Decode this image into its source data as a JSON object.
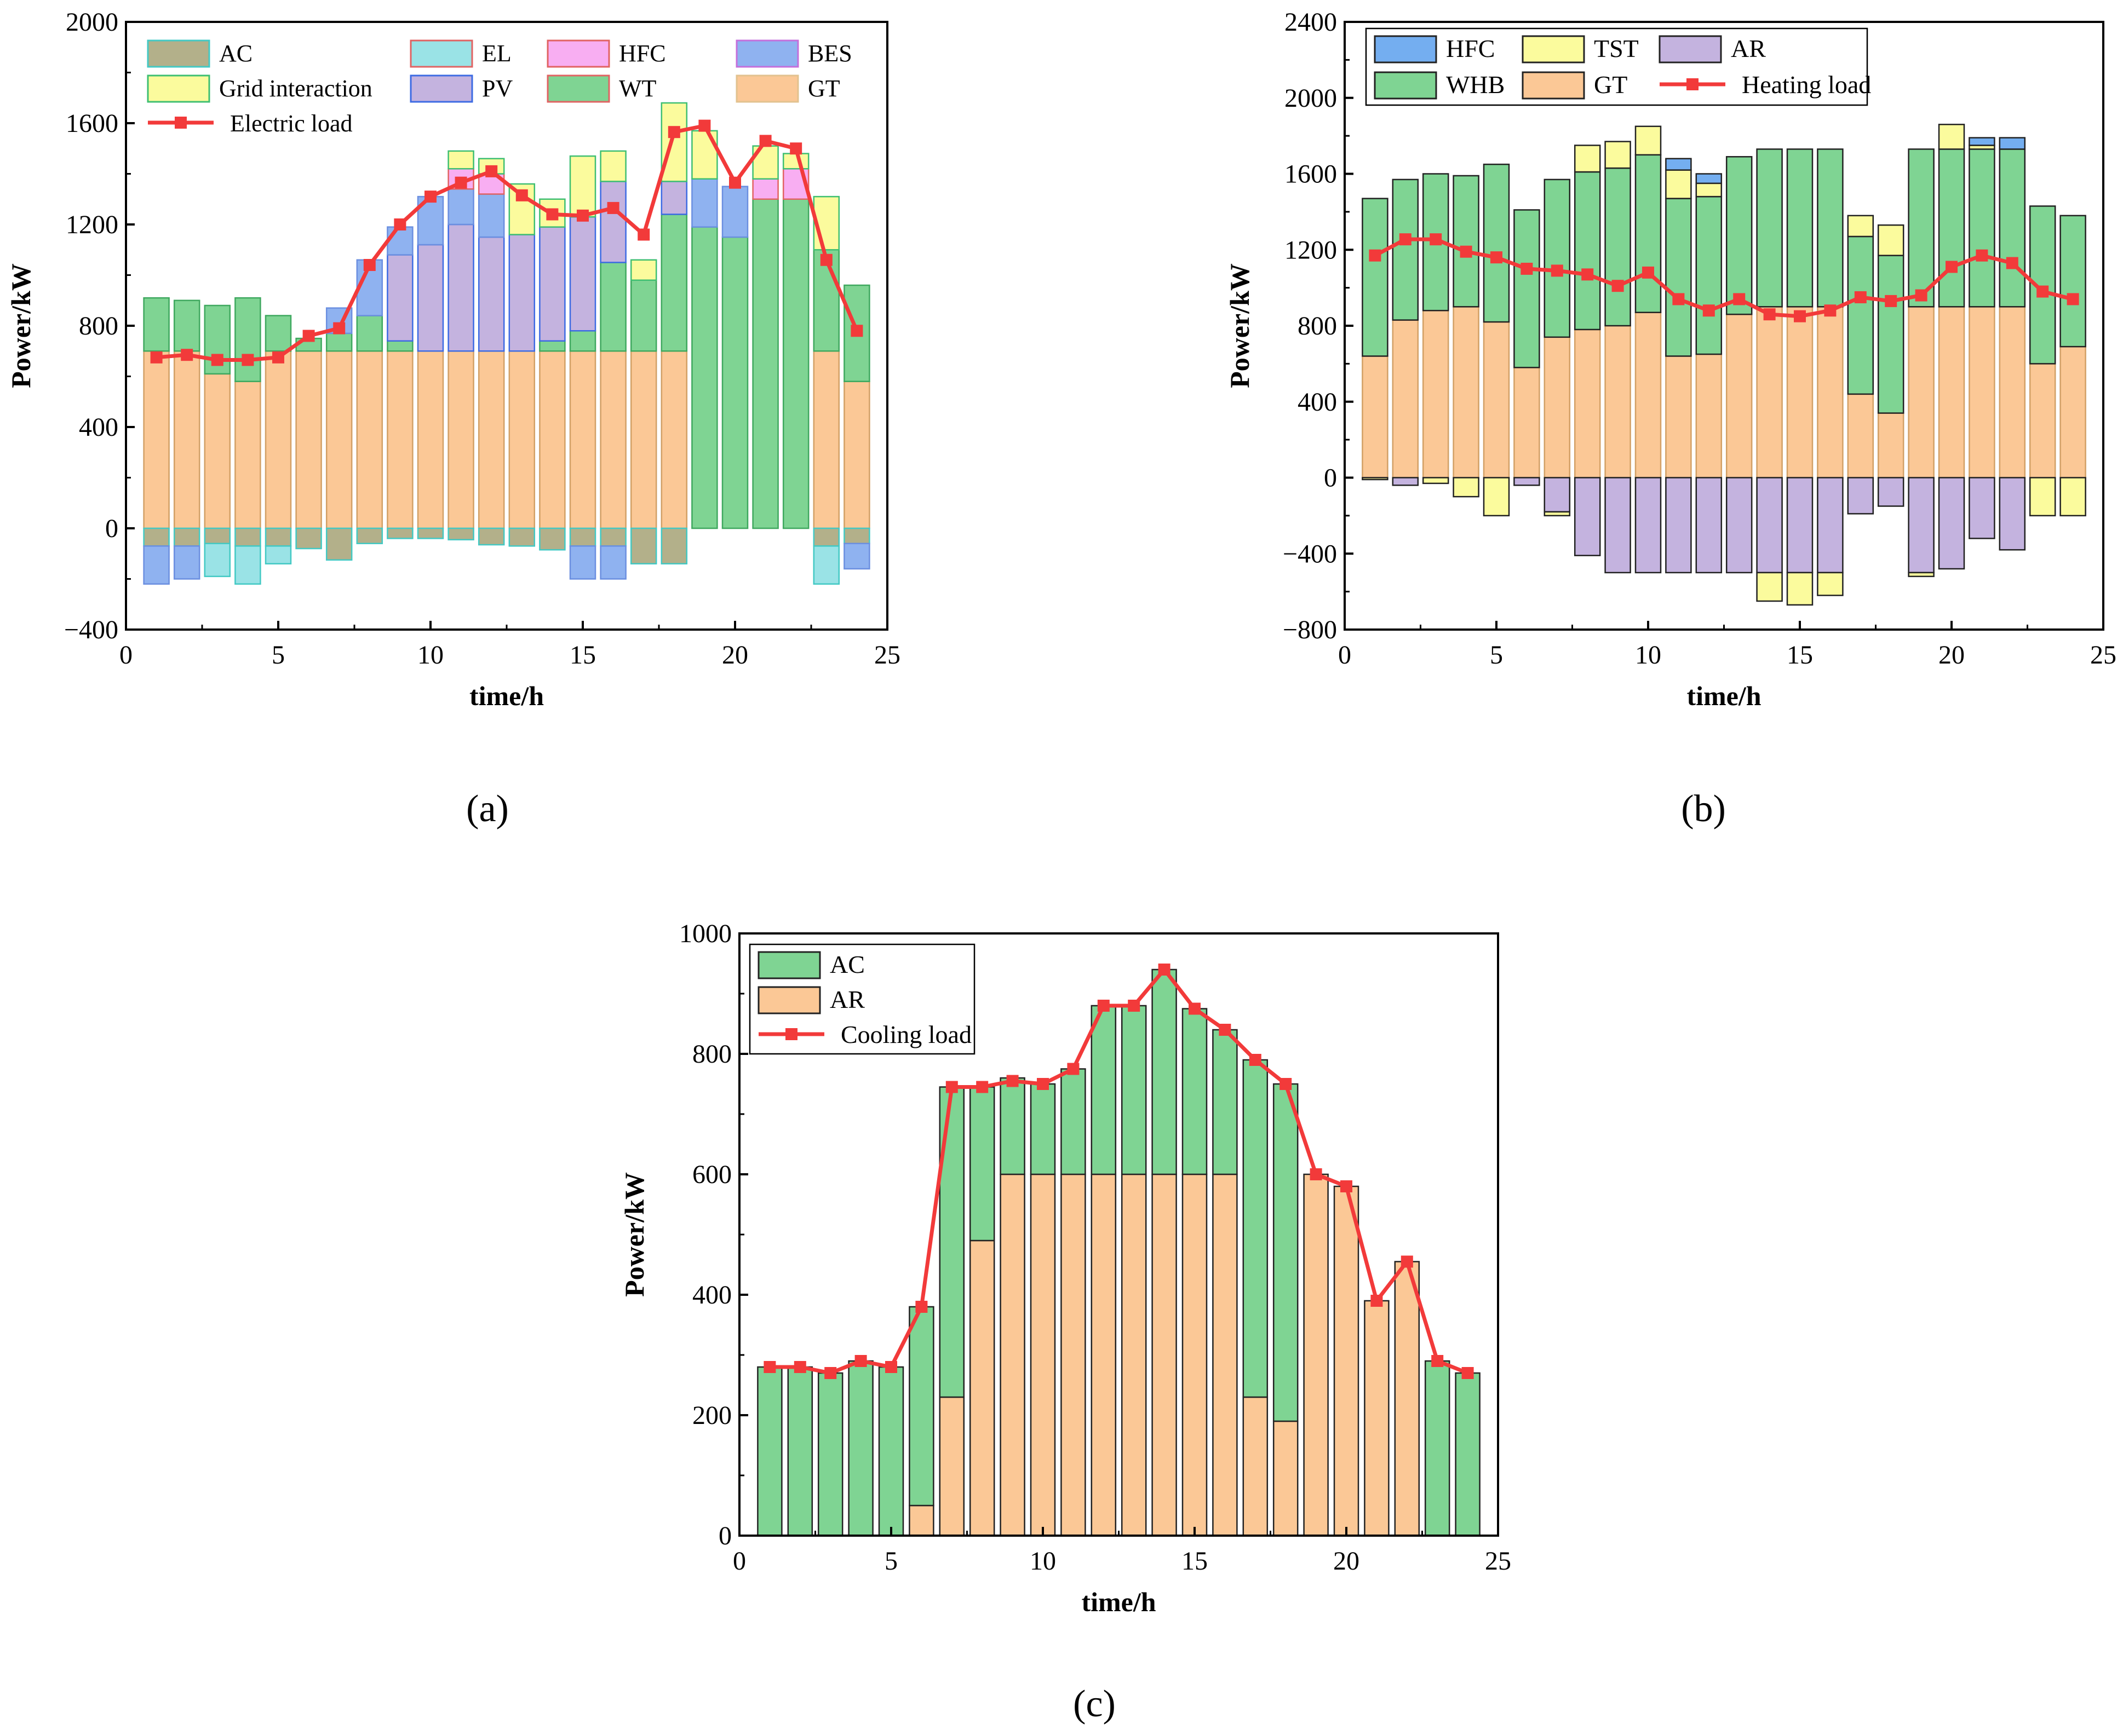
{
  "figure": {
    "panel_labels": [
      "(a)",
      "(b)",
      "(c)"
    ]
  },
  "colors": {
    "AC": "#b3b08a",
    "EL": "#9ae3e6",
    "HFC": "#f8aef2",
    "BES": "#8fb2f0",
    "Grid": "#fbfb9d",
    "PV": "#c4b3df",
    "WT": "#7fd493",
    "GT": "#fbc896",
    "line": "#f23a3a",
    "TST": "#fbfb9d",
    "AR": "#c4b3df",
    "WHB": "#7fd493",
    "HFC_b": "#74aef0",
    "AC_c": "#7fd493",
    "AR_c": "#fbc896"
  },
  "chart_data": [
    {
      "id": "a",
      "type": "bar",
      "stacked": true,
      "title": "(a)",
      "xlabel": "time/h",
      "ylabel": "Power/kW",
      "xlim": [
        0,
        25
      ],
      "ylim": [
        -400,
        2000
      ],
      "xticks": [
        0,
        5,
        10,
        15,
        20,
        25
      ],
      "yticks": [
        -400,
        0,
        400,
        800,
        1200,
        1600,
        2000
      ],
      "ytick_labels": [
        "−400",
        "0",
        "400",
        "800",
        "1200",
        "1600",
        "2000"
      ],
      "x": [
        1,
        2,
        3,
        4,
        5,
        6,
        7,
        8,
        9,
        10,
        11,
        12,
        13,
        14,
        15,
        16,
        17,
        18,
        19,
        20,
        21,
        22,
        23,
        24
      ],
      "positive_order": [
        "GT",
        "WT",
        "PV",
        "BES",
        "HFC",
        "Grid interaction"
      ],
      "negative_order": [
        "AC",
        "EL",
        "BES"
      ],
      "series": [
        {
          "name": "GT",
          "key": "GT",
          "sign": "pos",
          "values": [
            700,
            700,
            610,
            580,
            700,
            700,
            700,
            700,
            700,
            700,
            700,
            700,
            700,
            700,
            700,
            700,
            700,
            700,
            0,
            0,
            0,
            0,
            700,
            580
          ]
        },
        {
          "name": "WT",
          "key": "WT",
          "sign": "pos",
          "values": [
            210,
            200,
            270,
            330,
            140,
            50,
            70,
            140,
            40,
            0,
            0,
            0,
            0,
            40,
            80,
            350,
            280,
            540,
            1190,
            1150,
            1300,
            1300,
            400,
            380
          ]
        },
        {
          "name": "PV",
          "key": "PV",
          "sign": "pos",
          "values": [
            0,
            0,
            0,
            0,
            0,
            0,
            0,
            0,
            340,
            420,
            500,
            450,
            460,
            450,
            450,
            320,
            0,
            130,
            0,
            0,
            0,
            0,
            0,
            0
          ]
        },
        {
          "name": "BES",
          "key": "BES",
          "sign": "pos",
          "values": [
            0,
            0,
            0,
            0,
            0,
            0,
            100,
            220,
            110,
            190,
            140,
            170,
            0,
            0,
            0,
            0,
            0,
            0,
            190,
            200,
            0,
            0,
            0,
            0
          ]
        },
        {
          "name": "HFC",
          "key": "HFC",
          "sign": "pos",
          "values": [
            0,
            0,
            0,
            0,
            0,
            0,
            0,
            0,
            0,
            0,
            80,
            80,
            0,
            0,
            0,
            0,
            0,
            0,
            0,
            0,
            80,
            120,
            0,
            0
          ]
        },
        {
          "name": "Grid interaction",
          "key": "Grid",
          "sign": "pos",
          "values": [
            0,
            0,
            0,
            0,
            0,
            0,
            0,
            0,
            0,
            0,
            70,
            60,
            200,
            110,
            240,
            120,
            80,
            310,
            190,
            0,
            130,
            60,
            210,
            0
          ]
        },
        {
          "name": "AC",
          "key": "AC",
          "sign": "neg",
          "values": [
            -70,
            -70,
            -60,
            -70,
            -70,
            -80,
            -125,
            -60,
            -40,
            -40,
            -45,
            -65,
            -70,
            -85,
            -70,
            -70,
            -140,
            -140,
            0,
            0,
            0,
            0,
            -70,
            -60
          ]
        },
        {
          "name": "EL",
          "key": "EL",
          "sign": "neg",
          "values": [
            0,
            0,
            -130,
            -150,
            -70,
            0,
            0,
            0,
            0,
            0,
            0,
            0,
            0,
            0,
            0,
            0,
            0,
            0,
            0,
            0,
            0,
            0,
            -150,
            0
          ]
        },
        {
          "name": "BES",
          "key": "BES",
          "sign": "neg",
          "values": [
            -150,
            -130,
            0,
            0,
            0,
            0,
            0,
            0,
            0,
            0,
            0,
            0,
            0,
            0,
            -130,
            -130,
            0,
            0,
            0,
            0,
            0,
            0,
            0,
            -100
          ]
        }
      ],
      "line": {
        "name": "Electric load",
        "values": [
          675,
          685,
          665,
          665,
          675,
          760,
          790,
          1040,
          1200,
          1310,
          1365,
          1410,
          1315,
          1240,
          1235,
          1265,
          1160,
          1565,
          1590,
          1365,
          1530,
          1500,
          1060,
          780
        ]
      },
      "legend": {
        "position": "top-left",
        "rows": [
          [
            {
              "label": "AC",
              "key": "AC",
              "edge": "#43c9c4"
            },
            {
              "label": "EL",
              "key": "EL",
              "edge": "#e16363"
            },
            {
              "label": "HFC",
              "key": "HFC",
              "edge": "#e16363"
            },
            {
              "label": "BES",
              "key": "BES",
              "edge": "#c46fdb"
            }
          ],
          [
            {
              "label": "Grid interaction",
              "key": "Grid",
              "edge": "#3fbf72"
            },
            {
              "label": "PV",
              "key": "PV",
              "edge": "#3d6be3"
            },
            {
              "label": "WT",
              "key": "WT",
              "edge": "#e16363"
            },
            {
              "label": "GT",
              "key": "GT",
              "edge": "#e2c28f"
            }
          ],
          [
            {
              "label": "Electric load",
              "key": "line",
              "line": true
            }
          ]
        ]
      }
    },
    {
      "id": "b",
      "type": "bar",
      "stacked": true,
      "title": "(b)",
      "xlabel": "time/h",
      "ylabel": "Power/kW",
      "xlim": [
        0,
        25
      ],
      "ylim": [
        -800,
        2400
      ],
      "xticks": [
        0,
        5,
        10,
        15,
        20,
        25
      ],
      "yticks": [
        -800,
        -400,
        0,
        400,
        800,
        1200,
        1600,
        2000,
        2400
      ],
      "ytick_labels": [
        "−800",
        "−400",
        "0",
        "400",
        "800",
        "1200",
        "1600",
        "2000",
        "2400"
      ],
      "x": [
        1,
        2,
        3,
        4,
        5,
        6,
        7,
        8,
        9,
        10,
        11,
        12,
        13,
        14,
        15,
        16,
        17,
        18,
        19,
        20,
        21,
        22,
        23,
        24
      ],
      "series": [
        {
          "name": "GT",
          "key": "GT",
          "sign": "pos",
          "values": [
            640,
            830,
            880,
            900,
            820,
            580,
            740,
            780,
            800,
            870,
            640,
            650,
            860,
            900,
            900,
            900,
            440,
            340,
            900,
            900,
            900,
            900,
            600,
            690
          ]
        },
        {
          "name": "WHB",
          "key": "WHB",
          "sign": "pos",
          "values": [
            830,
            740,
            720,
            690,
            830,
            830,
            830,
            830,
            830,
            830,
            830,
            830,
            830,
            830,
            830,
            830,
            830,
            830,
            830,
            830,
            830,
            830,
            830,
            690
          ]
        },
        {
          "name": "TST",
          "key": "TST",
          "sign": "pos",
          "values": [
            0,
            0,
            0,
            0,
            0,
            0,
            0,
            140,
            140,
            150,
            150,
            70,
            0,
            0,
            0,
            0,
            110,
            160,
            0,
            130,
            20,
            0,
            0,
            0
          ]
        },
        {
          "name": "HFC",
          "key": "HFC_b",
          "sign": "pos",
          "values": [
            0,
            0,
            0,
            0,
            0,
            0,
            0,
            0,
            0,
            0,
            60,
            50,
            0,
            0,
            0,
            0,
            0,
            0,
            0,
            0,
            40,
            60,
            0,
            0
          ]
        },
        {
          "name": "AR",
          "key": "AR",
          "sign": "neg",
          "values": [
            0,
            -40,
            0,
            0,
            0,
            -40,
            -180,
            -410,
            -500,
            -500,
            -500,
            -500,
            -500,
            -500,
            -500,
            -500,
            -190,
            -150,
            -500,
            -480,
            -320,
            -380,
            0,
            0
          ]
        },
        {
          "name": "TST",
          "key": "TST",
          "sign": "neg",
          "values": [
            -10,
            0,
            -30,
            -100,
            -200,
            0,
            -20,
            0,
            0,
            0,
            0,
            0,
            0,
            -150,
            -170,
            -120,
            0,
            0,
            -20,
            0,
            0,
            0,
            -200,
            -200
          ]
        }
      ],
      "line": {
        "name": "Heating load",
        "values": [
          1170,
          1255,
          1255,
          1190,
          1160,
          1100,
          1090,
          1070,
          1010,
          1080,
          940,
          880,
          940,
          860,
          850,
          880,
          950,
          930,
          960,
          1110,
          1170,
          1130,
          980,
          940
        ]
      },
      "legend": {
        "position": "top-left",
        "rows": [
          [
            {
              "label": "HFC",
              "key": "HFC_b"
            },
            {
              "label": "TST",
              "key": "TST"
            },
            {
              "label": "AR",
              "key": "AR"
            }
          ],
          [
            {
              "label": "WHB",
              "key": "WHB"
            },
            {
              "label": "GT",
              "key": "GT"
            },
            {
              "label": "Heating load",
              "key": "line",
              "line": true
            }
          ]
        ]
      }
    },
    {
      "id": "c",
      "type": "bar",
      "stacked": true,
      "title": "(c)",
      "xlabel": "time/h",
      "ylabel": "Power/kW",
      "xlim": [
        0,
        25
      ],
      "ylim": [
        0,
        1000
      ],
      "xticks": [
        0,
        5,
        10,
        15,
        20,
        25
      ],
      "yticks": [
        0,
        200,
        400,
        600,
        800,
        1000
      ],
      "ytick_labels": [
        "0",
        "200",
        "400",
        "600",
        "800",
        "1000"
      ],
      "x": [
        1,
        2,
        3,
        4,
        5,
        6,
        7,
        8,
        9,
        10,
        11,
        12,
        13,
        14,
        15,
        16,
        17,
        18,
        19,
        20,
        21,
        22,
        23,
        24
      ],
      "series": [
        {
          "name": "AR",
          "key": "AR_c",
          "sign": "pos",
          "values": [
            0,
            0,
            0,
            0,
            0,
            50,
            230,
            490,
            600,
            600,
            600,
            600,
            600,
            600,
            600,
            600,
            230,
            190,
            600,
            580,
            390,
            455,
            0,
            0
          ]
        },
        {
          "name": "AC",
          "key": "AC_c",
          "sign": "pos",
          "values": [
            280,
            280,
            270,
            290,
            280,
            330,
            515,
            255,
            160,
            150,
            175,
            280,
            280,
            340,
            275,
            240,
            560,
            560,
            0,
            0,
            0,
            0,
            290,
            270
          ]
        }
      ],
      "line": {
        "name": "Cooling load",
        "values": [
          280,
          280,
          270,
          290,
          280,
          380,
          745,
          745,
          755,
          750,
          775,
          880,
          880,
          940,
          875,
          840,
          790,
          750,
          600,
          580,
          390,
          455,
          290,
          270
        ]
      },
      "legend": {
        "position": "top-left",
        "rows": [
          [
            {
              "label": "AC",
              "key": "AC_c"
            }
          ],
          [
            {
              "label": "AR",
              "key": "AR_c"
            }
          ],
          [
            {
              "label": "Cooling load",
              "key": "line",
              "line": true
            }
          ]
        ]
      }
    }
  ]
}
